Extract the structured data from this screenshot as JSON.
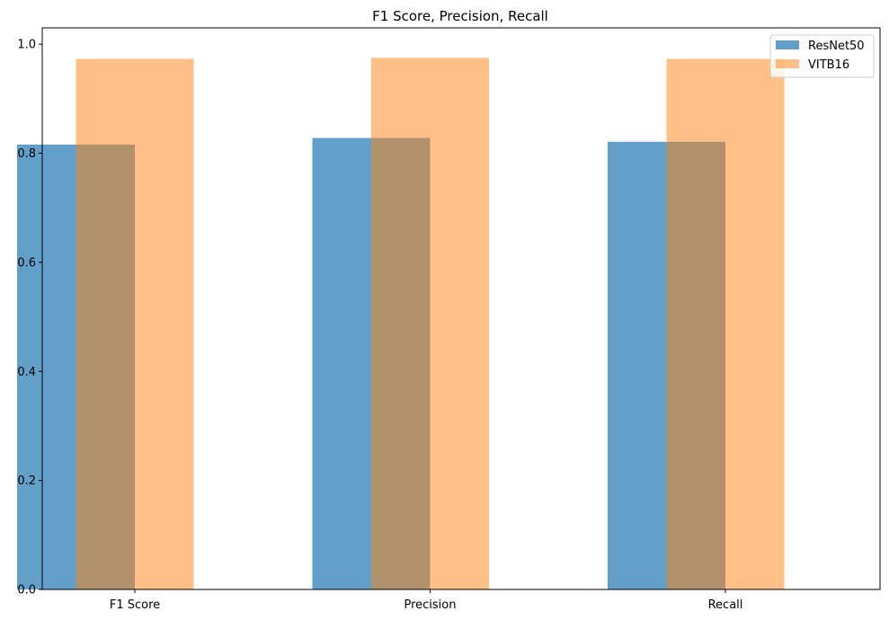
{
  "chart_data": {
    "type": "bar",
    "title": "F1 Score, Precision, Recall",
    "xlabel": "",
    "ylabel": "",
    "categories": [
      "F1 Score",
      "Precision",
      "Recall"
    ],
    "series": [
      {
        "name": "ResNet50",
        "values": [
          0.816,
          0.828,
          0.821
        ],
        "color": "#1f77b4",
        "opacity": 0.7
      },
      {
        "name": "VITB16",
        "values": [
          0.973,
          0.975,
          0.973
        ],
        "color": "#ff7f0e",
        "opacity": 0.5
      }
    ],
    "ylim": [
      0,
      1.03
    ],
    "yticks": [
      "0.0",
      "0.2",
      "0.4",
      "0.6",
      "0.8",
      "1.0"
    ],
    "legend_position": "top-right",
    "grid": false
  }
}
